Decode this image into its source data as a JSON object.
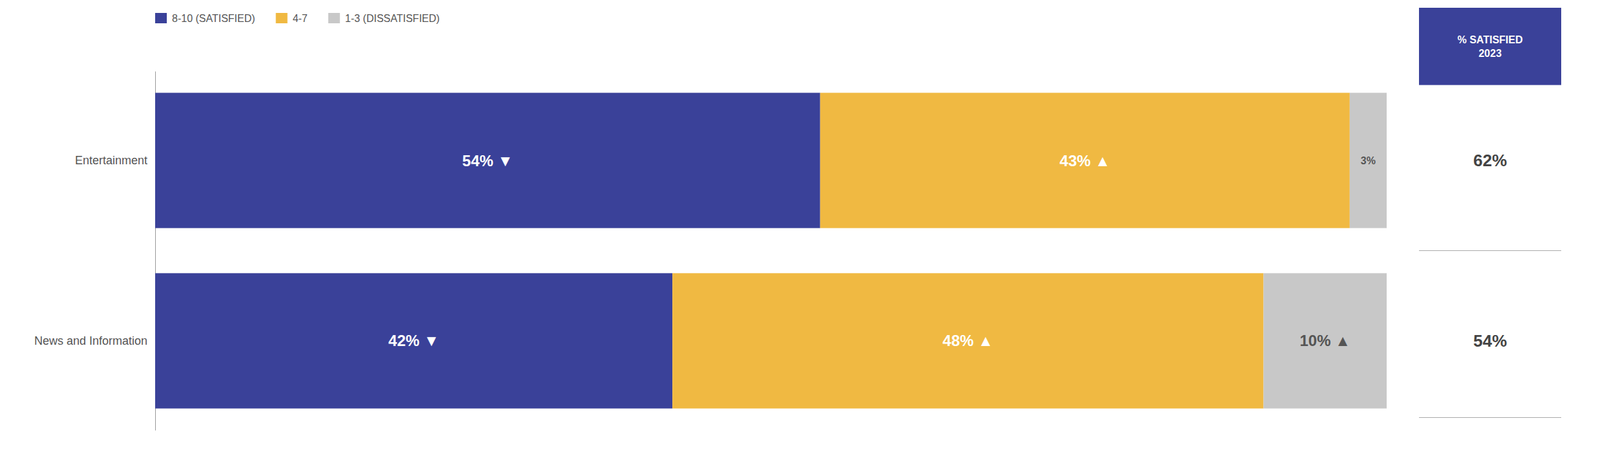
{
  "chart_data": [
    {
      "type": "bar",
      "orientation": "horizontal",
      "stacked": true,
      "categories": [
        "Entertainment",
        "News and Information"
      ],
      "series": [
        {
          "name": "8-10 (SATISFIED)",
          "color": "#3a4199",
          "values": [
            54,
            42
          ],
          "value_labels": [
            "54% ▼",
            "42% ▼"
          ]
        },
        {
          "name": "4-7",
          "color": "#f0b942",
          "values": [
            43,
            48
          ],
          "value_labels": [
            "43% ▲",
            "48% ▲"
          ]
        },
        {
          "name": "1-3 (DISSATISFIED)",
          "color": "#c8c8c8",
          "values": [
            3,
            10
          ],
          "value_labels": [
            "3%",
            "10% ▲"
          ]
        }
      ],
      "xlim": [
        0,
        100
      ],
      "tick_labels": "y",
      "data_labels": true,
      "legend": "upper left",
      "grid": false
    },
    {
      "type": "table",
      "title": "% SATISFIED\n2023",
      "color": "#3a4199",
      "values": [
        62,
        54
      ],
      "value_labels": [
        "62%",
        "54%"
      ]
    }
  ]
}
